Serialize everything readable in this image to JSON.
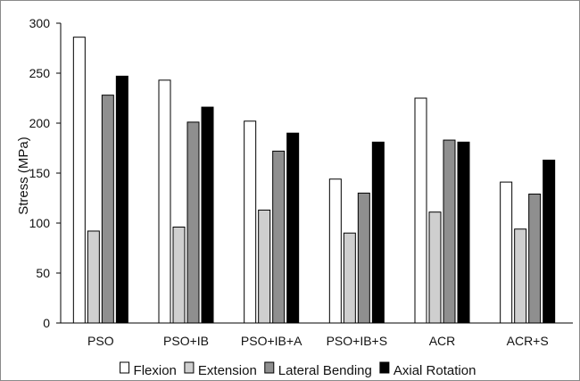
{
  "chart_data": {
    "type": "bar",
    "title": "",
    "xlabel": "",
    "ylabel": "Stress (MPa)",
    "ylim": [
      0,
      300
    ],
    "yticks": [
      "0",
      "50",
      "100",
      "150",
      "200",
      "250",
      "300"
    ],
    "categories": [
      "PSO",
      "PSO+IB",
      "PSO+IB+A",
      "PSO+IB+S",
      "ACR",
      "ACR+S"
    ],
    "series": [
      {
        "name": "Flexion",
        "color": "#ffffff",
        "values": [
          286,
          243,
          202,
          144,
          225,
          141
        ]
      },
      {
        "name": "Extension",
        "color": "#cfcfcf",
        "values": [
          92,
          96,
          113,
          90,
          111,
          94
        ]
      },
      {
        "name": "Lateral Bending",
        "color": "#8f8f8f",
        "values": [
          228,
          201,
          172,
          130,
          183,
          129
        ]
      },
      {
        "name": "Axial Rotation",
        "color": "#000000",
        "values": [
          247,
          216,
          190,
          181,
          181,
          163
        ]
      }
    ],
    "grid": false,
    "legend_position": "bottom"
  }
}
